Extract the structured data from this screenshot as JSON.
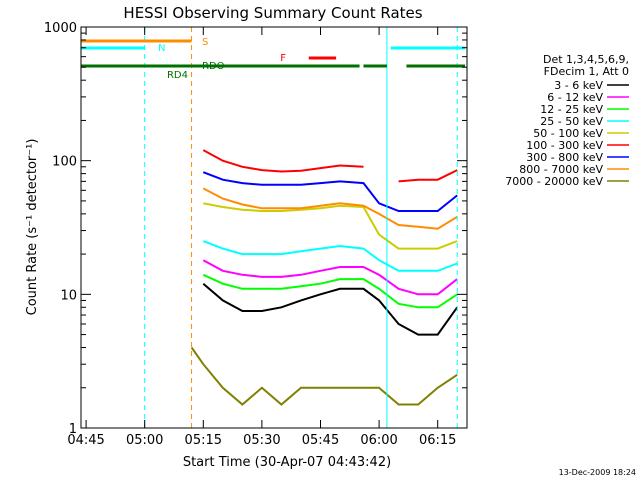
{
  "chart_data": {
    "type": "line",
    "title": "HESSI Observing Summary Count Rates",
    "xlabel": "Start Time (30-Apr-07 04:43:42)",
    "ylabel": "Count Rate (s⁻¹ detector⁻¹)",
    "yscale": "log",
    "xlim": [
      "04:43:42",
      "06:22:30"
    ],
    "ylim": [
      1,
      1000
    ],
    "x_ticks": [
      "04:45",
      "05:00",
      "05:15",
      "05:30",
      "05:45",
      "06:00",
      "06:15"
    ],
    "y_ticks": [
      "1",
      "10",
      "100",
      "1000"
    ],
    "grid": false,
    "legend_title": [
      "Det 1,3,4,5,6,9,",
      "FDecim 1, Att 0"
    ],
    "legend_position": "right",
    "footer": "13-Dec-2009 18:24",
    "x": [
      "05:12",
      "05:15",
      "05:20",
      "05:25",
      "05:30",
      "05:35",
      "05:40",
      "05:45",
      "05:50",
      "05:56",
      "06:00",
      "06:05",
      "06:10",
      "06:15",
      "06:20"
    ],
    "series": [
      {
        "name": "3 - 6 keV",
        "color": "#000000",
        "values": [
          null,
          12,
          9,
          7.5,
          7.5,
          8,
          9,
          10,
          11,
          11,
          9,
          6,
          5,
          5,
          8
        ]
      },
      {
        "name": "6 - 12 keV",
        "color": "#ff00ff",
        "values": [
          null,
          18,
          15,
          14,
          13.5,
          13.5,
          14,
          15,
          16,
          16,
          14,
          11,
          10,
          10,
          13
        ]
      },
      {
        "name": "12 - 25 keV",
        "color": "#00ff00",
        "values": [
          null,
          14,
          12,
          11,
          11,
          11,
          11.5,
          12,
          13,
          13,
          11,
          8.5,
          8,
          8,
          10
        ]
      },
      {
        "name": "25 - 50 keV",
        "color": "#00ffff",
        "values": [
          null,
          25,
          22,
          20,
          20,
          20,
          21,
          22,
          23,
          22,
          18,
          15,
          15,
          15,
          17
        ]
      },
      {
        "name": "50 - 100 keV",
        "color": "#cccc00",
        "values": [
          null,
          48,
          45,
          43,
          42,
          42,
          43,
          44,
          46,
          45,
          28,
          22,
          22,
          22,
          25
        ]
      },
      {
        "name": "100 - 300 keV",
        "color": "#ff0000",
        "values": [
          null,
          120,
          100,
          90,
          85,
          83,
          84,
          88,
          92,
          90,
          null,
          70,
          72,
          72,
          85
        ]
      },
      {
        "name": "300 - 800 keV",
        "color": "#0000ff",
        "values": [
          null,
          82,
          72,
          68,
          66,
          66,
          66,
          68,
          70,
          68,
          48,
          42,
          42,
          42,
          55
        ]
      },
      {
        "name": "800 - 7000 keV",
        "color": "#ff8c00",
        "values": [
          null,
          62,
          52,
          47,
          44,
          44,
          44,
          46,
          48,
          46,
          40,
          33,
          32,
          31,
          38
        ]
      },
      {
        "name": "7000 - 20000 keV",
        "color": "#808000",
        "values": [
          4,
          3,
          2,
          1.5,
          2,
          1.5,
          2,
          2,
          2,
          2,
          2,
          1.5,
          1.5,
          2,
          2.5
        ]
      }
    ],
    "flags": [
      {
        "label": "S",
        "color": "#ff8c00",
        "segments": [
          [
            "04:43:42",
            "05:12"
          ]
        ]
      },
      {
        "label": "N",
        "color": "#00ffff",
        "segments": [
          [
            "04:43:42",
            "05:00"
          ],
          [
            "06:03",
            "06:22"
          ]
        ]
      },
      {
        "label": "F",
        "color": "#ff0000",
        "segments": [
          [
            "05:42",
            "05:49"
          ]
        ]
      },
      {
        "label": "RD4",
        "color": "#007000",
        "segments": [
          [
            "04:43:42",
            "05:12"
          ]
        ]
      },
      {
        "label": "RDO",
        "color": "#007000",
        "segments": [
          [
            "05:12",
            "05:55"
          ],
          [
            "05:56",
            "06:02"
          ],
          [
            "06:07",
            "06:22"
          ]
        ]
      }
    ],
    "vertical_markers": [
      {
        "time": "04:43:42",
        "color": "#00ffff",
        "style": "solid"
      },
      {
        "time": "05:00",
        "color": "#00ffff",
        "style": "dashed"
      },
      {
        "time": "05:12",
        "color": "#ff8c00",
        "style": "dashed"
      },
      {
        "time": "06:02",
        "color": "#00ffff",
        "style": "solid"
      },
      {
        "time": "06:20",
        "color": "#00ffff",
        "style": "dashed"
      }
    ]
  }
}
